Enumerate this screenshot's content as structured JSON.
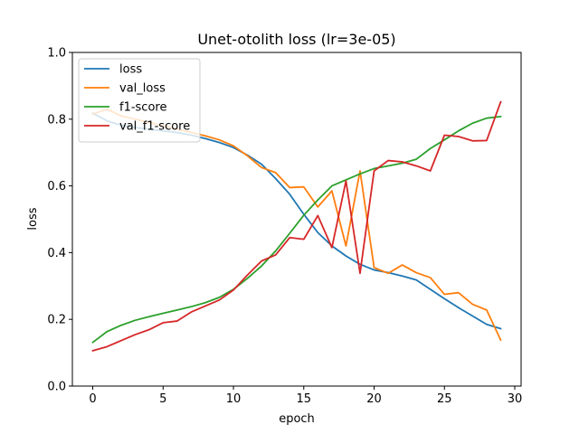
{
  "chart_data": {
    "type": "line",
    "title": "Unet-otolith loss (lr=3e-05)",
    "xlabel": "epoch",
    "ylabel": "loss",
    "xlim": [
      -1.45,
      30.45
    ],
    "ylim": [
      0,
      1.0
    ],
    "xticks": [
      0,
      5,
      10,
      15,
      20,
      25,
      30
    ],
    "yticks": [
      0.0,
      0.2,
      0.4,
      0.6,
      0.8,
      1.0
    ],
    "xtick_labels": [
      "0",
      "5",
      "10",
      "15",
      "20",
      "25",
      "30"
    ],
    "ytick_labels": [
      "0.0",
      "0.2",
      "0.4",
      "0.6",
      "0.8",
      "1.0"
    ],
    "grid": false,
    "legend_position": "top-left",
    "x": [
      0,
      1,
      2,
      3,
      4,
      5,
      6,
      7,
      8,
      9,
      10,
      11,
      12,
      13,
      14,
      15,
      16,
      17,
      18,
      19,
      20,
      21,
      22,
      23,
      24,
      25,
      26,
      27,
      28,
      29
    ],
    "series": [
      {
        "name": "loss",
        "color": "#1f77b4",
        "values": [
          0.818,
          0.795,
          0.782,
          0.775,
          0.77,
          0.765,
          0.76,
          0.752,
          0.742,
          0.73,
          0.715,
          0.692,
          0.665,
          0.622,
          0.575,
          0.515,
          0.46,
          0.42,
          0.39,
          0.365,
          0.348,
          0.34,
          0.33,
          0.318,
          0.29,
          0.262,
          0.235,
          0.21,
          0.185,
          0.172
        ]
      },
      {
        "name": "val_loss",
        "color": "#ff7f0e",
        "values": [
          0.815,
          0.83,
          0.81,
          0.8,
          0.79,
          0.78,
          0.77,
          0.76,
          0.75,
          0.738,
          0.72,
          0.69,
          0.655,
          0.64,
          0.595,
          0.597,
          0.537,
          0.585,
          0.42,
          0.645,
          0.355,
          0.338,
          0.363,
          0.34,
          0.325,
          0.275,
          0.28,
          0.245,
          0.228,
          0.138
        ]
      },
      {
        "name": "f1-score",
        "color": "#2ca02c",
        "values": [
          0.131,
          0.163,
          0.182,
          0.197,
          0.208,
          0.218,
          0.228,
          0.238,
          0.25,
          0.266,
          0.29,
          0.323,
          0.36,
          0.405,
          0.458,
          0.512,
          0.558,
          0.6,
          0.618,
          0.636,
          0.652,
          0.66,
          0.668,
          0.68,
          0.712,
          0.738,
          0.765,
          0.788,
          0.803,
          0.808
        ]
      },
      {
        "name": "val_f1-score",
        "color": "#d62728",
        "values": [
          0.106,
          0.118,
          0.136,
          0.154,
          0.169,
          0.19,
          0.195,
          0.222,
          0.24,
          0.258,
          0.288,
          0.333,
          0.375,
          0.393,
          0.445,
          0.44,
          0.511,
          0.415,
          0.615,
          0.338,
          0.645,
          0.676,
          0.672,
          0.66,
          0.645,
          0.752,
          0.748,
          0.735,
          0.736,
          0.852
        ]
      }
    ]
  }
}
